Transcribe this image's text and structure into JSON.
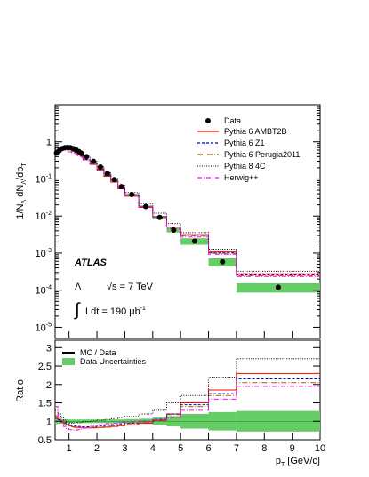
{
  "chart_data": [
    {
      "type": "line",
      "panel": "main",
      "ylabel_parts": {
        "prefix": "1/N",
        "sub1": "Λ",
        "mid": " dN",
        "sub2": "Λ",
        "mid2": "/dp",
        "sub3": "T"
      },
      "yscale": "log",
      "ylim": [
        5e-06,
        10
      ],
      "xlim": [
        0.5,
        10
      ],
      "y_tick_labels": [
        {
          "base": "10",
          "exp": "-5",
          "value": 1e-05
        },
        {
          "base": "10",
          "exp": "-4",
          "value": 0.0001
        },
        {
          "base": "10",
          "exp": "-3",
          "value": 0.001
        },
        {
          "base": "10",
          "exp": "-2",
          "value": 0.01
        },
        {
          "base": "10",
          "exp": "-1",
          "value": 0.1
        },
        {
          "base": "1",
          "exp": "",
          "value": 1
        }
      ],
      "bin_edges": [
        0.5,
        0.6,
        0.7,
        0.8,
        0.9,
        1.0,
        1.1,
        1.2,
        1.3,
        1.4,
        1.5,
        1.75,
        2.0,
        2.25,
        2.5,
        2.75,
        3.0,
        3.5,
        4.0,
        4.5,
        5.0,
        6.0,
        7.0,
        10.0
      ],
      "data_points": {
        "x": [
          0.55,
          0.65,
          0.75,
          0.85,
          0.95,
          1.05,
          1.15,
          1.25,
          1.35,
          1.45,
          1.625,
          1.875,
          2.125,
          2.375,
          2.625,
          2.875,
          3.25,
          3.75,
          4.25,
          4.75,
          5.5,
          6.5,
          8.5
        ],
        "y": [
          0.5,
          0.58,
          0.66,
          0.7,
          0.71,
          0.7,
          0.66,
          0.61,
          0.55,
          0.49,
          0.4,
          0.3,
          0.21,
          0.14,
          0.096,
          0.062,
          0.038,
          0.018,
          0.0092,
          0.0042,
          0.0021,
          0.00058,
          0.00012
        ]
      },
      "series": [
        {
          "name": "Data",
          "style": "marker",
          "color": "#000000"
        },
        {
          "name": "Pythia 6 AMBT2B",
          "color": "#ff0000",
          "dash": "",
          "ratio": [
            1.12,
            1.05,
            0.98,
            0.93,
            0.9,
            0.87,
            0.85,
            0.84,
            0.83,
            0.83,
            0.82,
            0.82,
            0.83,
            0.84,
            0.86,
            0.88,
            0.9,
            0.95,
            1.02,
            1.2,
            1.5,
            1.85,
            2.3
          ]
        },
        {
          "name": "Pythia 6 Z1",
          "color": "#0000cc",
          "dash": "3,2",
          "ratio": [
            1.08,
            1.04,
            1.0,
            0.96,
            0.93,
            0.9,
            0.88,
            0.87,
            0.86,
            0.85,
            0.85,
            0.86,
            0.87,
            0.89,
            0.91,
            0.93,
            0.95,
            1.0,
            1.05,
            1.2,
            1.45,
            1.75,
            2.15
          ]
        },
        {
          "name": "Pythia 6 Perugia2011",
          "color": "#996600",
          "dash": "6,2,1,2",
          "ratio": [
            1.15,
            1.08,
            1.0,
            0.94,
            0.9,
            0.87,
            0.84,
            0.83,
            0.82,
            0.82,
            0.82,
            0.83,
            0.84,
            0.86,
            0.88,
            0.9,
            0.93,
            0.98,
            1.04,
            1.18,
            1.4,
            1.7,
            2.05
          ]
        },
        {
          "name": "Pythia 8 4C",
          "color": "#000000",
          "dash": "1,1.5",
          "ratio": [
            1.3,
            1.2,
            1.1,
            1.03,
            0.98,
            0.96,
            0.95,
            0.95,
            0.96,
            0.97,
            0.99,
            1.01,
            1.03,
            1.05,
            1.07,
            1.1,
            1.13,
            1.2,
            1.3,
            1.5,
            1.7,
            2.2,
            2.7
          ]
        },
        {
          "name": "Herwig++",
          "color": "#ff00ff",
          "dash": "5,2,1,2",
          "ratio": [
            1.4,
            1.1,
            0.95,
            0.86,
            0.8,
            0.77,
            0.76,
            0.76,
            0.77,
            0.79,
            0.82,
            0.86,
            0.9,
            0.93,
            0.95,
            0.97,
            0.98,
            1.0,
            1.03,
            1.1,
            1.3,
            1.6,
            1.95
          ]
        }
      ],
      "legend_placement": "top-right"
    },
    {
      "type": "line",
      "panel": "ratio",
      "ylabel": "Ratio",
      "xlabel": "p",
      "xlabel_sub": "T",
      "xlabel_unit": " [GeV/c]",
      "ylim": [
        0.5,
        3.2
      ],
      "xlim": [
        0.5,
        10
      ],
      "y_ticks": [
        "0.5",
        "1",
        "1.5",
        "2",
        "2.5",
        "3"
      ],
      "x_ticks": [
        "1",
        "2",
        "3",
        "4",
        "5",
        "6",
        "7",
        "8",
        "9",
        "10"
      ],
      "legend": [
        "MC / Data",
        "Data Uncertainties"
      ],
      "legend_placement": "top-left",
      "data_uncertainty": [
        0.08,
        0.07,
        0.06,
        0.06,
        0.05,
        0.05,
        0.05,
        0.05,
        0.05,
        0.05,
        0.05,
        0.05,
        0.05,
        0.05,
        0.05,
        0.05,
        0.06,
        0.07,
        0.1,
        0.14,
        0.2,
        0.25,
        0.28
      ],
      "uncertainty_color": "#66cc66"
    }
  ],
  "annotations": {
    "atlas": "ATLAS",
    "particle": "Λ",
    "energy": "√s = 7 TeV",
    "lumi_integral": "∫",
    "lumi_text": "Ldt = 190 μb",
    "lumi_exp": "-1"
  },
  "legend_main": [
    "Data",
    "Pythia 6 AMBT2B",
    "Pythia 6 Z1",
    "Pythia 6 Perugia2011",
    "Pythia 8 4C",
    "Herwig++"
  ]
}
